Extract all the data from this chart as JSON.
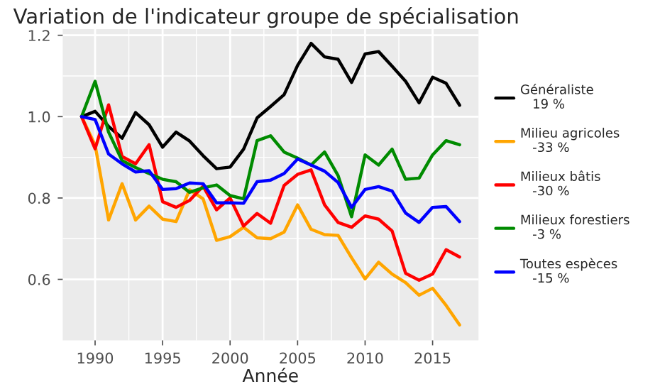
{
  "chart_data": {
    "type": "line",
    "title": "Variation de l'indicateur groupe de spécialisation",
    "xlabel": "Année",
    "x": [
      1989,
      1990,
      1991,
      1992,
      1993,
      1994,
      1995,
      1996,
      1997,
      1998,
      1999,
      2000,
      2001,
      2002,
      2003,
      2004,
      2005,
      2006,
      2007,
      2008,
      2009,
      2010,
      2011,
      2012,
      2013,
      2014,
      2015,
      2016,
      2017
    ],
    "series": [
      {
        "name": "Généraliste\n   19 %",
        "color": "#000000",
        "values": [
          1.0,
          1.013,
          0.976,
          0.947,
          1.01,
          0.98,
          0.925,
          0.962,
          0.94,
          0.904,
          0.872,
          0.876,
          0.92,
          0.997,
          1.025,
          1.054,
          1.126,
          1.18,
          1.147,
          1.141,
          1.084,
          1.154,
          1.16,
          1.124,
          1.087,
          1.034,
          1.097,
          1.082,
          1.028
        ]
      },
      {
        "name": "Milieu agricoles\n   -33 %",
        "color": "#ffa500",
        "values": [
          1.0,
          0.93,
          0.746,
          0.835,
          0.746,
          0.78,
          0.748,
          0.742,
          0.82,
          0.798,
          0.696,
          0.705,
          0.728,
          0.702,
          0.7,
          0.716,
          0.783,
          0.723,
          0.71,
          0.708,
          0.653,
          0.601,
          0.642,
          0.613,
          0.592,
          0.561,
          0.578,
          0.536,
          0.488
        ]
      },
      {
        "name": "Milieux bâtis\n   -30 %",
        "color": "#ff0000",
        "values": [
          1.0,
          0.921,
          1.029,
          0.902,
          0.884,
          0.931,
          0.791,
          0.777,
          0.794,
          0.829,
          0.771,
          0.8,
          0.731,
          0.762,
          0.738,
          0.831,
          0.858,
          0.869,
          0.783,
          0.74,
          0.728,
          0.756,
          0.748,
          0.719,
          0.615,
          0.598,
          0.613,
          0.673,
          0.655
        ]
      },
      {
        "name": "Milieux forestiers\n   -3 %",
        "color": "#008b00",
        "values": [
          1.0,
          1.087,
          0.962,
          0.892,
          0.875,
          0.86,
          0.846,
          0.84,
          0.814,
          0.825,
          0.832,
          0.806,
          0.798,
          0.941,
          0.953,
          0.913,
          0.898,
          0.881,
          0.913,
          0.855,
          0.754,
          0.906,
          0.881,
          0.92,
          0.846,
          0.849,
          0.906,
          0.941,
          0.931
        ]
      },
      {
        "name": "Toutes espèces\n   -15 %",
        "color": "#0000ff",
        "values": [
          1.0,
          0.993,
          0.908,
          0.884,
          0.864,
          0.867,
          0.821,
          0.823,
          0.837,
          0.835,
          0.788,
          0.788,
          0.787,
          0.84,
          0.844,
          0.86,
          0.896,
          0.881,
          0.866,
          0.838,
          0.777,
          0.821,
          0.828,
          0.817,
          0.763,
          0.74,
          0.777,
          0.779,
          0.742
        ]
      }
    ],
    "xlim": [
      1987.6,
      2018.4
    ],
    "ylim": [
      0.45,
      1.215
    ],
    "xticks": [
      1990,
      1995,
      2000,
      2005,
      2010,
      2015
    ],
    "yticks": [
      {
        "value": 0.6,
        "label": "0.6"
      },
      {
        "value": 0.8,
        "label": "0.8"
      },
      {
        "value": 1.0,
        "label": "1.0"
      },
      {
        "value": 1.2,
        "label": "1.2"
      }
    ],
    "grid": true,
    "legend": "right",
    "line_style": "solid",
    "marker": "none"
  }
}
